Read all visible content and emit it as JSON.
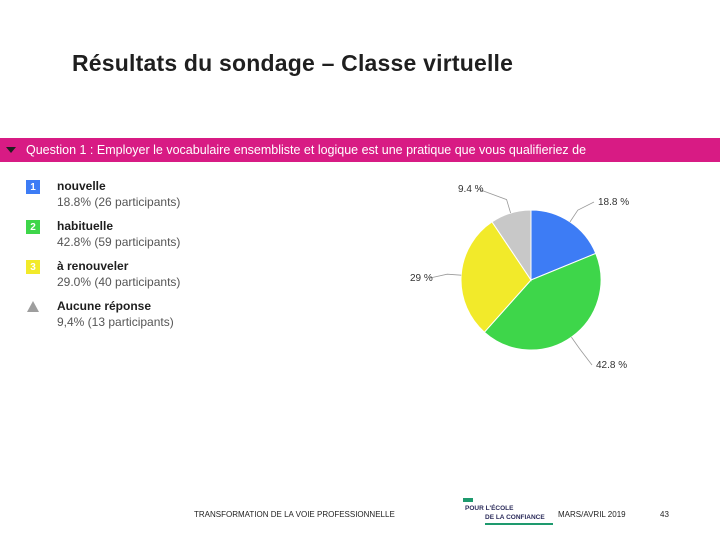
{
  "slide": {
    "title": "Résultats du sondage – Classe virtuelle",
    "question": "Question 1 : Employer le vocabulaire ensembliste et logique est une pratique que vous qualifieriez de",
    "question_bar_color": "#d81b84"
  },
  "legend": [
    {
      "badge": "1",
      "name": "nouvelle",
      "detail": "18.8% (26 participants)",
      "color": "#3d7cf5"
    },
    {
      "badge": "2",
      "name": "habituelle",
      "detail": "42.8% (59 participants)",
      "color": "#3ed64a"
    },
    {
      "badge": "3",
      "name": "à renouveler",
      "detail": "29.0% (40 participants)",
      "color": "#f2ea2a"
    },
    {
      "badge": "",
      "name": "Aucune réponse",
      "detail": "9,4% (13 participants)",
      "color": "#c8c8c8",
      "icon": "triangle-icon"
    }
  ],
  "chart_data": {
    "type": "pie",
    "categories": [
      "nouvelle",
      "habituelle",
      "à renouveler",
      "Aucune réponse"
    ],
    "values": [
      18.8,
      42.8,
      29.0,
      9.4
    ],
    "labels": [
      "18.8 %",
      "42.8 %",
      "29 %",
      "9.4 %"
    ],
    "colors": [
      "#3d7cf5",
      "#3ed64a",
      "#f2ea2a",
      "#c8c8c8"
    ],
    "title": "",
    "legend_position": "left"
  },
  "footer": {
    "left": "TRANSFORMATION DE LA VOIE PROFESSIONNELLE",
    "logo_line1": "POUR L'ÉCOLE",
    "logo_line2": "DE LA CONFIANCE",
    "date": "MARS/AVRIL 2019",
    "page": "43"
  }
}
